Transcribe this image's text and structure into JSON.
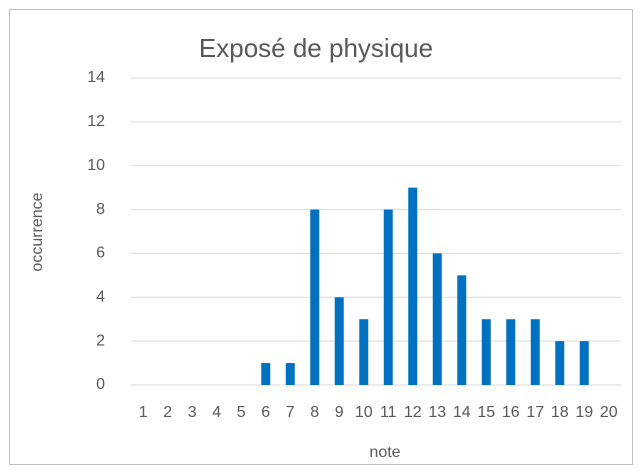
{
  "chart_data": {
    "type": "bar",
    "title": "Exposé de physique",
    "x_label": "note",
    "y_label": "occurrence",
    "categories": [
      "1",
      "2",
      "3",
      "4",
      "5",
      "6",
      "7",
      "8",
      "9",
      "10",
      "11",
      "12",
      "13",
      "14",
      "15",
      "16",
      "17",
      "18",
      "19",
      "20"
    ],
    "values": [
      0,
      0,
      0,
      0,
      0,
      1,
      1,
      8,
      4,
      3,
      8,
      9,
      6,
      5,
      3,
      3,
      3,
      2,
      2,
      0
    ],
    "color": "#0070c0",
    "ylim": [
      0,
      14
    ],
    "yticks": [
      0,
      2,
      4,
      6,
      8,
      10,
      12,
      14
    ],
    "grid": true
  }
}
